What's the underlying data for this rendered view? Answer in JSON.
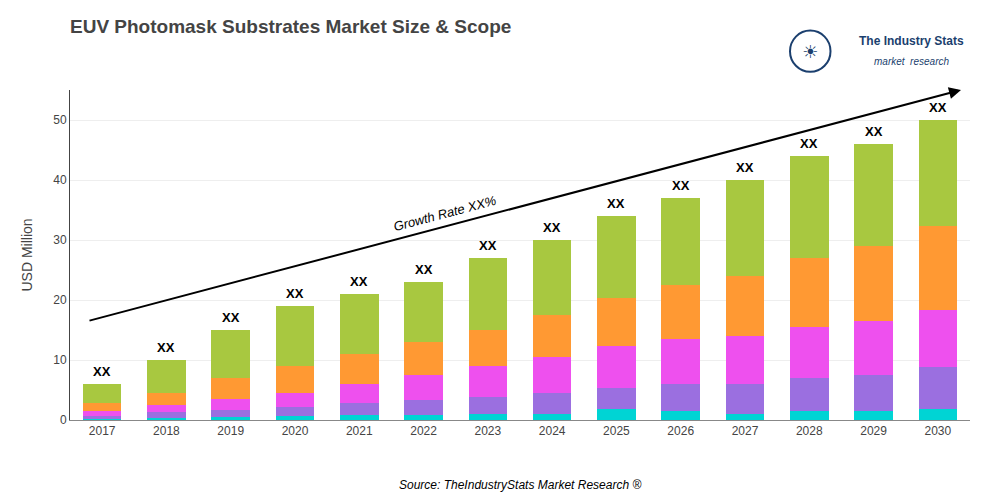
{
  "chart_data": {
    "type": "bar",
    "stacked": true,
    "title": "EUV Photomask Substrates Market Size & Scope",
    "ylabel": "USD Million",
    "categories": [
      "2017",
      "2018",
      "2019",
      "2020",
      "2021",
      "2022",
      "2023",
      "2024",
      "2025",
      "2026",
      "2027",
      "2028",
      "2029",
      "2030"
    ],
    "series": [
      {
        "color": "#00D4D4",
        "values": [
          0.2,
          0.3,
          0.5,
          0.7,
          0.8,
          0.9,
          1.0,
          1.0,
          1.8,
          1.5,
          1.0,
          1.5,
          1.5,
          1.8
        ]
      },
      {
        "color": "#9B6FE0",
        "values": [
          0.5,
          1.0,
          1.2,
          1.5,
          2.0,
          2.5,
          2.8,
          3.5,
          3.5,
          4.5,
          5.0,
          5.5,
          6.0,
          7.0
        ]
      },
      {
        "color": "#EE50EE",
        "values": [
          0.8,
          1.2,
          1.8,
          2.3,
          3.2,
          4.1,
          5.2,
          6.0,
          7.0,
          7.5,
          8.0,
          8.5,
          9.0,
          9.5
        ]
      },
      {
        "color": "#FF9933",
        "values": [
          1.3,
          2.0,
          3.5,
          4.5,
          5.0,
          5.5,
          6.0,
          7.0,
          8.0,
          9.0,
          10.0,
          11.5,
          12.5,
          14.0
        ]
      },
      {
        "color": "#A8C840",
        "values": [
          3.2,
          5.5,
          8.0,
          10.0,
          10.0,
          10.0,
          12.0,
          12.5,
          13.7,
          14.5,
          16.0,
          17.0,
          17.0,
          17.7
        ]
      }
    ],
    "ylim": [
      0,
      55
    ],
    "yticks": [
      0,
      10,
      20,
      30,
      40,
      50
    ],
    "grid": true,
    "annotations": [
      {
        "text": "XX",
        "category": "2017"
      },
      {
        "text": "XX",
        "category": "2018"
      },
      {
        "text": "XX",
        "category": "2019"
      },
      {
        "text": "XX",
        "category": "2020"
      },
      {
        "text": "XX",
        "category": "2021"
      },
      {
        "text": "XX",
        "category": "2022"
      },
      {
        "text": "XX",
        "category": "2023"
      },
      {
        "text": "XX",
        "category": "2024"
      },
      {
        "text": "XX",
        "category": "2025"
      },
      {
        "text": "XX",
        "category": "2026"
      },
      {
        "text": "XX",
        "category": "2027"
      },
      {
        "text": "XX",
        "category": "2028"
      },
      {
        "text": "XX",
        "category": "2029"
      },
      {
        "text": "XX",
        "category": "2030"
      },
      {
        "text": "Growth Rate XX%"
      },
      {
        "text": "Source: TheIndustryStats Market Research ®"
      },
      {
        "text": "The Industry Stats"
      },
      {
        "text": "market  research"
      },
      {
        "text": "☀"
      }
    ]
  }
}
